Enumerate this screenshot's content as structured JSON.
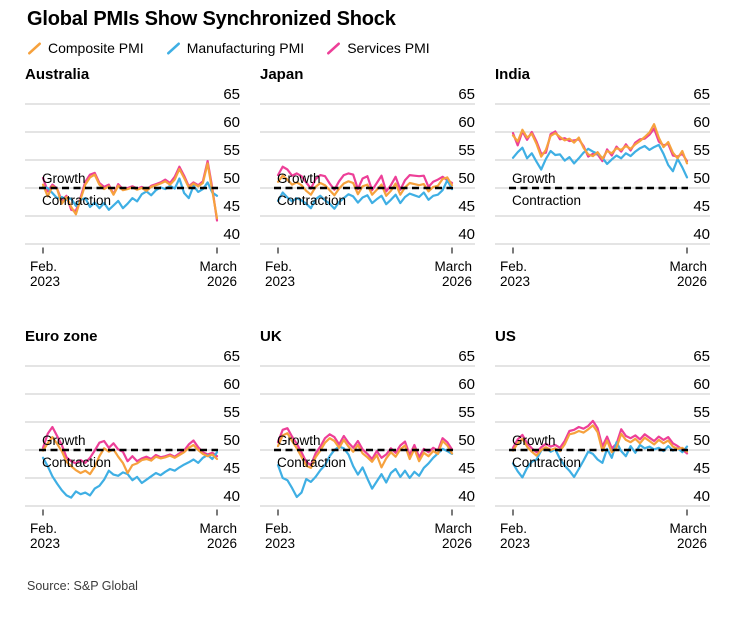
{
  "title": "Global PMIs Show Synchronized Shock",
  "source": "Source: S&P Global",
  "legend": [
    {
      "label": "Composite PMI",
      "color": "#F6A13D"
    },
    {
      "label": "Manufacturing PMI",
      "color": "#3FAFE4"
    },
    {
      "label": "Services PMI",
      "color": "#ED3F98"
    }
  ],
  "style": {
    "grid_color": "#C9C9C9",
    "threshold_color": "#000000",
    "tick_color": "#333333"
  },
  "axis": {
    "y_ticks": [
      65,
      60,
      55,
      50,
      45,
      40
    ],
    "ylim": [
      38,
      67
    ],
    "threshold_value": 50,
    "growth_label": "Growth",
    "contraction_label": "Contraction",
    "x_start": [
      "Feb.",
      "2023"
    ],
    "x_end": [
      "March",
      "2026"
    ],
    "x_points": 38,
    "x_frequency": "monthly"
  },
  "chart_data": [
    {
      "type": "line",
      "title": "Australia",
      "x_range": [
        "Feb. 2023",
        "March 2026"
      ],
      "series": [
        {
          "key": "composite",
          "name": "Composite PMI",
          "color": "#F6A13D",
          "values": [
            50.6,
            48.5,
            50.3,
            49.8,
            47.2,
            48.4,
            46.6,
            45.3,
            48.0,
            50.6,
            51.9,
            52.4,
            50.6,
            49.8,
            50.3,
            48.8,
            50.4,
            49.6,
            49.8,
            50.1,
            49.7,
            50.0,
            49.5,
            50.2,
            50.5,
            50.8,
            51.2,
            50.6,
            51.5,
            53.4,
            51.8,
            50.1,
            50.8,
            50.3,
            50.9,
            54.4,
            49.5,
            44.6
          ]
        },
        {
          "key": "manufacturing",
          "name": "Manufacturing PMI",
          "color": "#3FAFE4",
          "values": [
            50.2,
            50.0,
            49.1,
            48.2,
            48.4,
            47.9,
            48.1,
            46.8,
            47.9,
            48.2,
            46.6,
            47.4,
            46.4,
            47.3,
            46.1,
            46.9,
            47.7,
            46.4,
            47.2,
            48.2,
            47.6,
            48.9,
            49.4,
            48.7,
            49.6,
            50.1,
            49.8,
            50.4,
            49.9,
            51.7,
            49.1,
            48.2,
            50.4,
            49.3,
            49.8,
            51.0,
            49.2,
            48.6
          ]
        },
        {
          "key": "services",
          "name": "Services PMI",
          "color": "#ED3F98",
          "values": [
            51.8,
            49.4,
            50.6,
            49.9,
            47.7,
            48.6,
            46.1,
            45.9,
            48.3,
            51.1,
            52.4,
            52.7,
            50.9,
            50.2,
            50.6,
            48.9,
            50.7,
            49.8,
            50.0,
            50.3,
            49.9,
            50.2,
            49.7,
            50.4,
            50.7,
            51.0,
            51.5,
            50.9,
            52.0,
            53.8,
            52.2,
            50.3,
            51.0,
            50.5,
            51.2,
            54.8,
            50.0,
            44.2
          ]
        }
      ]
    },
    {
      "type": "line",
      "title": "Japan",
      "x_range": [
        "Feb. 2023",
        "March 2026"
      ],
      "series": [
        {
          "key": "composite",
          "name": "Composite PMI",
          "color": "#F6A13D",
          "values": [
            51.1,
            52.2,
            51.5,
            50.6,
            51.0,
            50.5,
            49.5,
            48.8,
            50.2,
            50.9,
            50.5,
            49.6,
            48.7,
            49.9,
            50.8,
            51.2,
            50.9,
            48.9,
            50.3,
            50.6,
            48.8,
            49.7,
            50.6,
            48.6,
            49.5,
            50.8,
            48.8,
            50.1,
            50.9,
            50.7,
            50.5,
            50.7,
            49.4,
            50.2,
            50.4,
            51.6,
            51.9,
            50.5
          ]
        },
        {
          "key": "manufacturing",
          "name": "Manufacturing PMI",
          "color": "#3FAFE4",
          "values": [
            47.7,
            49.2,
            48.3,
            47.6,
            48.2,
            47.8,
            47.2,
            46.4,
            48.0,
            48.6,
            47.8,
            47.2,
            46.3,
            47.5,
            48.2,
            48.9,
            48.5,
            47.4,
            48.3,
            48.7,
            47.3,
            48.0,
            48.6,
            47.1,
            47.9,
            48.8,
            47.3,
            48.4,
            49.0,
            48.7,
            48.4,
            49.2,
            47.9,
            48.6,
            48.8,
            49.6,
            51.4,
            49.8
          ]
        },
        {
          "key": "services",
          "name": "Services PMI",
          "color": "#ED3F98",
          "values": [
            52.3,
            53.8,
            53.3,
            52.2,
            52.6,
            52.1,
            51.0,
            49.9,
            51.6,
            52.3,
            52.1,
            50.8,
            49.7,
            51.2,
            52.3,
            52.6,
            52.4,
            49.8,
            51.7,
            52.1,
            49.6,
            50.9,
            52.2,
            49.4,
            50.5,
            52.0,
            49.7,
            51.4,
            52.3,
            52.2,
            52.1,
            52.2,
            50.2,
            51.1,
            51.5,
            52.0,
            51.4,
            50.9
          ]
        }
      ]
    },
    {
      "type": "line",
      "title": "India",
      "x_range": [
        "Feb. 2023",
        "March 2026"
      ],
      "series": [
        {
          "key": "composite",
          "name": "Composite PMI",
          "color": "#F6A13D",
          "values": [
            59.4,
            58.3,
            60.4,
            59.0,
            59.7,
            57.9,
            55.6,
            56.8,
            59.3,
            59.8,
            59.1,
            58.5,
            58.8,
            58.1,
            59.0,
            57.2,
            56.0,
            55.7,
            56.4,
            55.2,
            56.6,
            56.2,
            57.1,
            56.8,
            57.5,
            57.0,
            57.8,
            58.4,
            59.1,
            59.9,
            61.4,
            59.0,
            57.3,
            58.2,
            56.3,
            55.3,
            56.6,
            54.4
          ]
        },
        {
          "key": "manufacturing",
          "name": "Manufacturing PMI",
          "color": "#3FAFE4",
          "values": [
            55.4,
            56.4,
            57.2,
            55.3,
            56.2,
            54.7,
            53.3,
            55.2,
            56.6,
            55.9,
            56.0,
            54.9,
            55.5,
            54.4,
            55.3,
            56.3,
            57.0,
            56.5,
            56.1,
            55.4,
            54.3,
            55.1,
            55.8,
            55.3,
            56.2,
            55.7,
            56.5,
            57.1,
            57.5,
            56.8,
            57.3,
            57.7,
            56.1,
            54.1,
            53.0,
            55.2,
            53.7,
            51.9
          ]
        },
        {
          "key": "services",
          "name": "Services PMI",
          "color": "#ED3F98",
          "values": [
            59.8,
            57.6,
            60.1,
            58.6,
            60.0,
            58.3,
            56.1,
            56.3,
            59.6,
            60.1,
            58.7,
            58.9,
            58.4,
            58.5,
            58.7,
            57.5,
            55.6,
            56.1,
            56.0,
            54.8,
            56.9,
            55.8,
            57.4,
            56.5,
            57.8,
            56.7,
            58.1,
            58.7,
            58.8,
            59.5,
            60.6,
            58.3,
            57.6,
            57.9,
            55.8,
            55.6,
            56.1,
            54.8
          ]
        }
      ]
    },
    {
      "type": "line",
      "title": "Euro zone",
      "x_range": [
        "Feb. 2023",
        "March 2026"
      ],
      "series": [
        {
          "key": "composite",
          "name": "Composite PMI",
          "color": "#F6A13D",
          "values": [
            49.9,
            51.2,
            52.3,
            51.1,
            49.8,
            47.9,
            47.1,
            46.4,
            45.9,
            46.3,
            45.7,
            47.0,
            48.9,
            50.3,
            49.7,
            50.1,
            48.8,
            47.7,
            45.9,
            47.3,
            47.6,
            48.2,
            48.4,
            48.1,
            48.8,
            48.5,
            48.7,
            49.0,
            48.6,
            49.1,
            49.6,
            50.4,
            50.9,
            50.0,
            49.3,
            48.9,
            49.2,
            48.4
          ]
        },
        {
          "key": "manufacturing",
          "name": "Manufacturing PMI",
          "color": "#3FAFE4",
          "values": [
            48.6,
            47.1,
            45.3,
            44.0,
            42.8,
            41.9,
            41.5,
            42.6,
            42.1,
            42.4,
            41.9,
            43.1,
            43.6,
            44.7,
            46.3,
            45.6,
            45.4,
            46.0,
            45.7,
            44.6,
            45.2,
            44.1,
            44.7,
            45.3,
            45.9,
            45.5,
            46.1,
            46.6,
            46.3,
            46.9,
            47.4,
            47.8,
            48.3,
            47.7,
            48.6,
            49.1,
            48.4,
            49.6
          ]
        },
        {
          "key": "services",
          "name": "Services PMI",
          "color": "#ED3F98",
          "values": [
            50.4,
            52.9,
            54.1,
            52.5,
            50.9,
            48.7,
            48.0,
            47.6,
            48.2,
            47.7,
            48.6,
            49.9,
            51.3,
            51.6,
            50.4,
            51.2,
            50.1,
            49.7,
            48.0,
            48.9,
            48.0,
            48.5,
            48.8,
            48.4,
            49.1,
            48.7,
            48.9,
            49.2,
            48.8,
            49.4,
            49.9,
            51.0,
            51.7,
            50.5,
            49.6,
            49.2,
            49.5,
            48.9
          ]
        }
      ]
    },
    {
      "type": "line",
      "title": "UK",
      "x_range": [
        "Feb. 2023",
        "March 2026"
      ],
      "series": [
        {
          "key": "composite",
          "name": "Composite PMI",
          "color": "#F6A13D",
          "values": [
            50.7,
            52.6,
            53.0,
            51.6,
            50.3,
            48.8,
            47.2,
            46.8,
            48.7,
            49.9,
            51.3,
            52.1,
            51.6,
            50.4,
            51.8,
            50.6,
            49.7,
            50.9,
            49.4,
            48.7,
            47.9,
            49.1,
            46.9,
            48.5,
            49.6,
            48.8,
            50.1,
            50.8,
            48.4,
            50.2,
            48.0,
            49.5,
            48.9,
            49.8,
            49.3,
            51.6,
            50.8,
            49.4
          ]
        },
        {
          "key": "manufacturing",
          "name": "Manufacturing PMI",
          "color": "#3FAFE4",
          "values": [
            47.3,
            45.0,
            44.6,
            43.2,
            41.6,
            42.4,
            44.8,
            44.3,
            45.2,
            46.4,
            47.3,
            48.9,
            50.0,
            50.6,
            50.3,
            49.2,
            47.1,
            45.6,
            46.9,
            44.9,
            43.1,
            44.4,
            45.7,
            44.2,
            45.9,
            46.6,
            45.2,
            46.3,
            45.0,
            46.1,
            45.4,
            46.8,
            47.6,
            48.6,
            49.4,
            50.2,
            49.8,
            49.3
          ]
        },
        {
          "key": "services",
          "name": "Services PMI",
          "color": "#ED3F98",
          "values": [
            51.4,
            53.6,
            53.9,
            52.4,
            51.1,
            49.6,
            47.9,
            47.3,
            49.4,
            50.6,
            52.1,
            52.8,
            52.3,
            51.0,
            52.5,
            51.3,
            50.4,
            51.6,
            50.1,
            49.3,
            48.4,
            49.8,
            48.6,
            49.2,
            50.3,
            49.5,
            50.8,
            51.5,
            49.1,
            50.9,
            48.7,
            50.2,
            49.6,
            50.4,
            49.9,
            52.1,
            51.4,
            50.1
          ]
        }
      ]
    },
    {
      "type": "line",
      "title": "US",
      "x_range": [
        "Feb. 2023",
        "March 2026"
      ],
      "series": [
        {
          "key": "composite",
          "name": "Composite PMI",
          "color": "#F6A13D",
          "values": [
            49.9,
            51.2,
            52.0,
            50.6,
            49.7,
            49.0,
            50.0,
            50.5,
            50.0,
            50.3,
            49.8,
            51.0,
            52.8,
            53.0,
            53.4,
            53.1,
            53.7,
            54.4,
            53.2,
            49.8,
            51.7,
            49.6,
            50.4,
            52.9,
            51.8,
            51.4,
            52.0,
            51.2,
            52.2,
            51.6,
            51.0,
            51.8,
            51.2,
            51.7,
            50.6,
            50.2,
            50.4,
            49.7
          ]
        },
        {
          "key": "manufacturing",
          "name": "Manufacturing PMI",
          "color": "#3FAFE4",
          "values": [
            47.6,
            46.2,
            45.1,
            46.8,
            47.9,
            48.3,
            49.9,
            50.4,
            49.7,
            50.1,
            48.4,
            47.2,
            46.3,
            45.2,
            46.6,
            48.1,
            49.7,
            49.3,
            48.3,
            47.7,
            50.2,
            48.6,
            51.4,
            49.8,
            48.9,
            50.7,
            49.5,
            50.9,
            50.3,
            50.6,
            50.1,
            50.4,
            49.8,
            50.7,
            49.9,
            50.3,
            49.6,
            50.6
          ]
        },
        {
          "key": "services",
          "name": "Services PMI",
          "color": "#ED3F98",
          "values": [
            50.4,
            51.9,
            52.7,
            51.2,
            50.3,
            49.6,
            50.5,
            51.1,
            50.6,
            50.9,
            50.4,
            51.6,
            53.4,
            53.6,
            54.1,
            53.8,
            54.3,
            55.2,
            53.9,
            50.6,
            52.4,
            50.3,
            51.1,
            53.7,
            52.5,
            52.1,
            52.6,
            51.9,
            52.8,
            52.2,
            51.6,
            52.4,
            51.8,
            52.3,
            51.2,
            50.7,
            50.1,
            49.4
          ]
        }
      ]
    }
  ]
}
